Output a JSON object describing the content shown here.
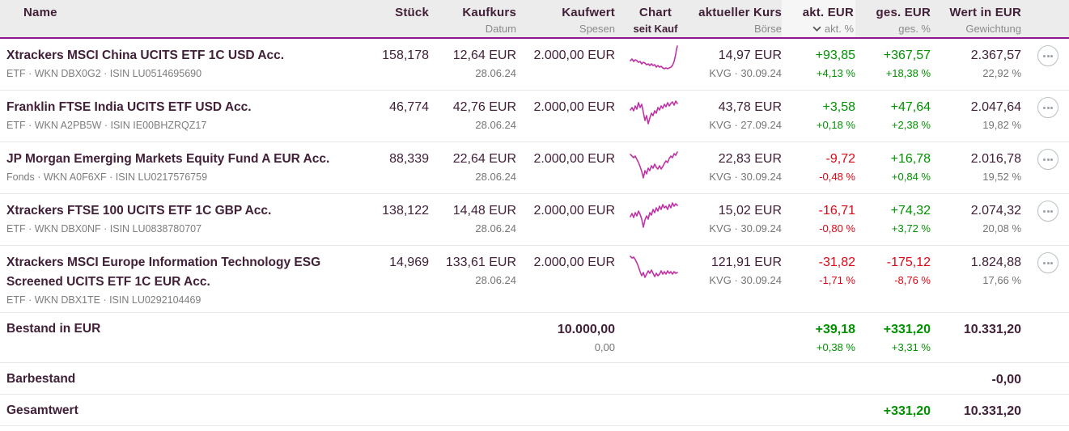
{
  "colors": {
    "accent": "#8f188f",
    "spark": "#bd35a4",
    "positive": "#009100",
    "negative": "#e00613",
    "header_bg": "#ececec",
    "sorted_col_bg": "#f6f6f6",
    "text_dark": "#412038",
    "text_gray": "#7d7d7d"
  },
  "header": {
    "name": {
      "label": "Name"
    },
    "stueck": {
      "label": "Stück"
    },
    "kaufkurs": {
      "label": "Kaufkurs",
      "sub": "Datum"
    },
    "kaufwert": {
      "label": "Kaufwert",
      "sub": "Spesen"
    },
    "chart": {
      "label": "Chart",
      "sub": "seit Kauf"
    },
    "kurs": {
      "label": "aktueller Kurs",
      "sub": "Börse"
    },
    "akt": {
      "label": "akt. EUR",
      "sub": "akt. %",
      "sort_icon": "chevron-down"
    },
    "ges": {
      "label": "ges. EUR",
      "sub": "ges. %"
    },
    "wert": {
      "label": "Wert in EUR",
      "sub": "Gewichtung"
    }
  },
  "rows": [
    {
      "name": "Xtrackers MSCI China UCITS ETF 1C USD Acc.",
      "info": "ETF · WKN DBX0G2 · ISIN LU0514695690",
      "stueck": "158,178",
      "kaufkurs": "12,64 EUR",
      "kauf_datum": "28.06.24",
      "kaufwert": "2.000,00 EUR",
      "kurs": "14,97 EUR",
      "boerse": "KVG · 30.09.24",
      "akt_eur": "+93,85",
      "akt_pct": "+4,13 %",
      "ges_eur": "+367,57",
      "ges_pct": "+18,38 %",
      "wert": "2.367,57",
      "gewichtung": "22,92 %",
      "sparkline": [
        [
          1,
          21
        ],
        [
          3,
          19
        ],
        [
          5,
          22
        ],
        [
          7,
          20
        ],
        [
          9,
          21
        ],
        [
          11,
          23
        ],
        [
          13,
          22
        ],
        [
          15,
          25
        ],
        [
          17,
          23
        ],
        [
          19,
          24
        ],
        [
          21,
          26
        ],
        [
          23,
          25
        ],
        [
          25,
          27
        ],
        [
          27,
          25
        ],
        [
          29,
          27
        ],
        [
          31,
          26
        ],
        [
          33,
          29
        ],
        [
          35,
          27
        ],
        [
          37,
          29
        ],
        [
          39,
          28
        ],
        [
          41,
          30
        ],
        [
          43,
          31
        ],
        [
          45,
          30
        ],
        [
          47,
          31
        ],
        [
          49,
          30
        ],
        [
          51,
          29
        ],
        [
          53,
          27
        ],
        [
          55,
          22
        ],
        [
          57,
          13
        ],
        [
          58,
          7
        ],
        [
          59,
          3
        ]
      ]
    },
    {
      "name": "Franklin FTSE India UCITS ETF USD Acc.",
      "info": "ETF · WKN A2PB5W · ISIN IE00BHZRQZ17",
      "stueck": "46,774",
      "kaufkurs": "42,76 EUR",
      "kauf_datum": "28.06.24",
      "kaufwert": "2.000,00 EUR",
      "kurs": "43,78 EUR",
      "boerse": "KVG · 27.09.24",
      "akt_eur": "+3,58",
      "akt_pct": "+0,18 %",
      "ges_eur": "+47,64",
      "ges_pct": "+2,38 %",
      "wert": "2.047,64",
      "gewichtung": "19,82 %",
      "sparkline": [
        [
          1,
          18
        ],
        [
          3,
          15
        ],
        [
          5,
          19
        ],
        [
          7,
          13
        ],
        [
          9,
          17
        ],
        [
          11,
          9
        ],
        [
          13,
          15
        ],
        [
          15,
          11
        ],
        [
          17,
          21
        ],
        [
          19,
          31
        ],
        [
          21,
          25
        ],
        [
          23,
          35
        ],
        [
          25,
          28
        ],
        [
          27,
          22
        ],
        [
          29,
          25
        ],
        [
          31,
          19
        ],
        [
          33,
          22
        ],
        [
          35,
          15
        ],
        [
          37,
          18
        ],
        [
          39,
          13
        ],
        [
          41,
          16
        ],
        [
          43,
          11
        ],
        [
          45,
          14
        ],
        [
          47,
          9
        ],
        [
          49,
          13
        ],
        [
          51,
          10
        ],
        [
          53,
          8
        ],
        [
          55,
          12
        ],
        [
          57,
          7
        ],
        [
          59,
          10
        ]
      ]
    },
    {
      "name": "JP Morgan Emerging Markets Equity Fund A EUR Acc.",
      "info": "Fonds · WKN A0F6XF · ISIN LU0217576759",
      "stueck": "88,339",
      "kaufkurs": "22,64 EUR",
      "kauf_datum": "28.06.24",
      "kaufwert": "2.000,00 EUR",
      "kurs": "22,83 EUR",
      "boerse": "KVG · 30.09.24",
      "akt_eur": "-9,72",
      "akt_pct": "-0,48 %",
      "ges_eur": "+16,78",
      "ges_pct": "+0,84 %",
      "wert": "2.016,78",
      "gewichtung": "19,52 %",
      "sparkline": [
        [
          1,
          9
        ],
        [
          3,
          11
        ],
        [
          5,
          13
        ],
        [
          7,
          11
        ],
        [
          9,
          15
        ],
        [
          11,
          19
        ],
        [
          13,
          24
        ],
        [
          15,
          30
        ],
        [
          17,
          38
        ],
        [
          19,
          29
        ],
        [
          21,
          33
        ],
        [
          23,
          26
        ],
        [
          25,
          29
        ],
        [
          27,
          23
        ],
        [
          29,
          26
        ],
        [
          31,
          21
        ],
        [
          33,
          25
        ],
        [
          35,
          27
        ],
        [
          37,
          23
        ],
        [
          39,
          27
        ],
        [
          41,
          24
        ],
        [
          43,
          20
        ],
        [
          45,
          17
        ],
        [
          47,
          19
        ],
        [
          49,
          14
        ],
        [
          51,
          11
        ],
        [
          53,
          13
        ],
        [
          55,
          8
        ],
        [
          57,
          10
        ],
        [
          59,
          6
        ]
      ]
    },
    {
      "name": "Xtrackers FTSE 100 UCITS ETF 1C GBP Acc.",
      "info": "ETF · WKN DBX0NF · ISIN LU0838780707",
      "stueck": "138,122",
      "kaufkurs": "14,48 EUR",
      "kauf_datum": "28.06.24",
      "kaufwert": "2.000,00 EUR",
      "kurs": "15,02 EUR",
      "boerse": "KVG · 30.09.24",
      "akt_eur": "-16,71",
      "akt_pct": "-0,80 %",
      "ges_eur": "+74,32",
      "ges_pct": "+3,72 %",
      "wert": "2.074,32",
      "gewichtung": "20,08 %",
      "sparkline": [
        [
          1,
          22
        ],
        [
          3,
          18
        ],
        [
          5,
          23
        ],
        [
          7,
          17
        ],
        [
          9,
          21
        ],
        [
          11,
          15
        ],
        [
          13,
          19
        ],
        [
          15,
          25
        ],
        [
          17,
          35
        ],
        [
          19,
          26
        ],
        [
          21,
          21
        ],
        [
          23,
          25
        ],
        [
          25,
          17
        ],
        [
          27,
          20
        ],
        [
          29,
          13
        ],
        [
          31,
          17
        ],
        [
          33,
          11
        ],
        [
          35,
          15
        ],
        [
          37,
          9
        ],
        [
          39,
          13
        ],
        [
          41,
          7
        ],
        [
          43,
          11
        ],
        [
          45,
          9
        ],
        [
          47,
          13
        ],
        [
          49,
          7
        ],
        [
          51,
          11
        ],
        [
          53,
          5
        ],
        [
          55,
          9
        ],
        [
          57,
          6
        ],
        [
          59,
          8
        ]
      ]
    },
    {
      "name": "Xtrackers MSCI Europe Information Technology ESG Screened UCITS ETF 1C EUR Acc.",
      "info": "ETF · WKN DBX1TE · ISIN LU0292104469",
      "stueck": "14,969",
      "kaufkurs": "133,61 EUR",
      "kauf_datum": "28.06.24",
      "kaufwert": "2.000,00 EUR",
      "kurs": "121,91 EUR",
      "boerse": "KVG · 30.09.24",
      "akt_eur": "-31,82",
      "akt_pct": "-1,71 %",
      "ges_eur": "-175,12",
      "ges_pct": "-8,76 %",
      "wert": "1.824,88",
      "gewichtung": "17,66 %",
      "sparkline": [
        [
          1,
          7
        ],
        [
          3,
          9
        ],
        [
          5,
          8
        ],
        [
          7,
          11
        ],
        [
          9,
          15
        ],
        [
          11,
          20
        ],
        [
          13,
          26
        ],
        [
          15,
          31
        ],
        [
          17,
          27
        ],
        [
          19,
          33
        ],
        [
          21,
          29
        ],
        [
          23,
          25
        ],
        [
          25,
          28
        ],
        [
          27,
          24
        ],
        [
          29,
          28
        ],
        [
          31,
          32
        ],
        [
          33,
          28
        ],
        [
          35,
          31
        ],
        [
          37,
          29
        ],
        [
          39,
          25
        ],
        [
          41,
          29
        ],
        [
          43,
          26
        ],
        [
          45,
          29
        ],
        [
          47,
          25
        ],
        [
          49,
          28
        ],
        [
          51,
          26
        ],
        [
          53,
          29
        ],
        [
          55,
          26
        ],
        [
          57,
          28
        ],
        [
          59,
          27
        ]
      ]
    }
  ],
  "totals": {
    "bestand_label": "Bestand in EUR",
    "bestand_kaufwert": "10.000,00",
    "bestand_spesen": "0,00",
    "bestand_akt": "+39,18",
    "bestand_akt_pct": "+0,38 %",
    "bestand_ges": "+331,20",
    "bestand_ges_pct": "+3,31 %",
    "bestand_wert": "10.331,20",
    "barbestand_label": "Barbestand",
    "barbestand_wert": "-0,00",
    "gesamt_label": "Gesamtwert",
    "gesamt_ges": "+331,20",
    "gesamt_wert": "10.331,20"
  }
}
